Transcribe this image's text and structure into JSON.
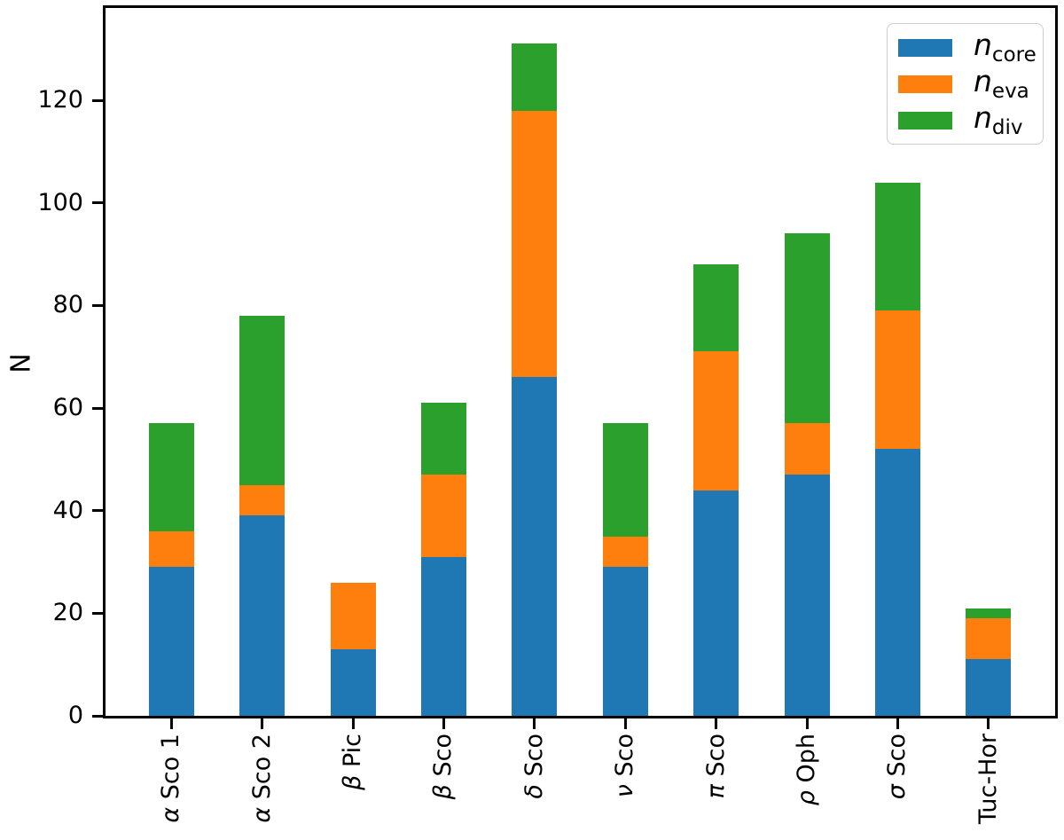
{
  "chart_data": {
    "type": "bar",
    "stacked": true,
    "title": "",
    "xlabel": "",
    "ylabel": "N",
    "grid": false,
    "legend_position": "upper right",
    "ylim": [
      0,
      138
    ],
    "yticks": [
      0,
      20,
      40,
      60,
      80,
      100,
      120
    ],
    "categories": [
      "α Sco 1",
      "α Sco 2",
      "β Pic",
      "β Sco",
      "δ Sco",
      "ν Sco",
      "π Sco",
      "ρ Oph",
      "σ Sco",
      "Tuc-Hor"
    ],
    "categories_markup": [
      {
        "slug": "alpha-sco-1",
        "italic": "α",
        "rest": "Sco 1"
      },
      {
        "slug": "alpha-sco-2",
        "italic": "α",
        "rest": "Sco 2"
      },
      {
        "slug": "beta-pic",
        "italic": "β",
        "rest": "Pic"
      },
      {
        "slug": "beta-sco",
        "italic": "β",
        "rest": "Sco"
      },
      {
        "slug": "delta-sco",
        "italic": "δ",
        "rest": "Sco"
      },
      {
        "slug": "nu-sco",
        "italic": "ν",
        "rest": "Sco"
      },
      {
        "slug": "pi-sco",
        "italic": "π",
        "rest": "Sco"
      },
      {
        "slug": "rho-oph",
        "italic": "ρ",
        "rest": "Oph"
      },
      {
        "slug": "sigma-sco",
        "italic": "σ",
        "rest": "Sco"
      },
      {
        "slug": "tuc-hor",
        "italic": "",
        "rest": "Tuc-Hor"
      }
    ],
    "series": [
      {
        "name": "n_core",
        "slug": "n-core",
        "legend_main": "n",
        "legend_sub": "core",
        "color": "#1f77b4",
        "values": [
          29,
          39,
          13,
          31,
          66,
          29,
          44,
          47,
          52,
          11
        ]
      },
      {
        "name": "n_eva",
        "slug": "n-eva",
        "legend_main": "n",
        "legend_sub": "eva",
        "color": "#ff7f0e",
        "values": [
          7,
          6,
          13,
          16,
          52,
          6,
          27,
          10,
          27,
          8
        ]
      },
      {
        "name": "n_div",
        "slug": "n-div",
        "legend_main": "n",
        "legend_sub": "div",
        "color": "#2ca02c",
        "values": [
          21,
          33,
          0,
          14,
          13,
          22,
          17,
          37,
          25,
          2
        ]
      }
    ],
    "stack_totals": [
      57,
      78,
      26,
      61,
      131,
      57,
      88,
      94,
      104,
      21
    ]
  }
}
